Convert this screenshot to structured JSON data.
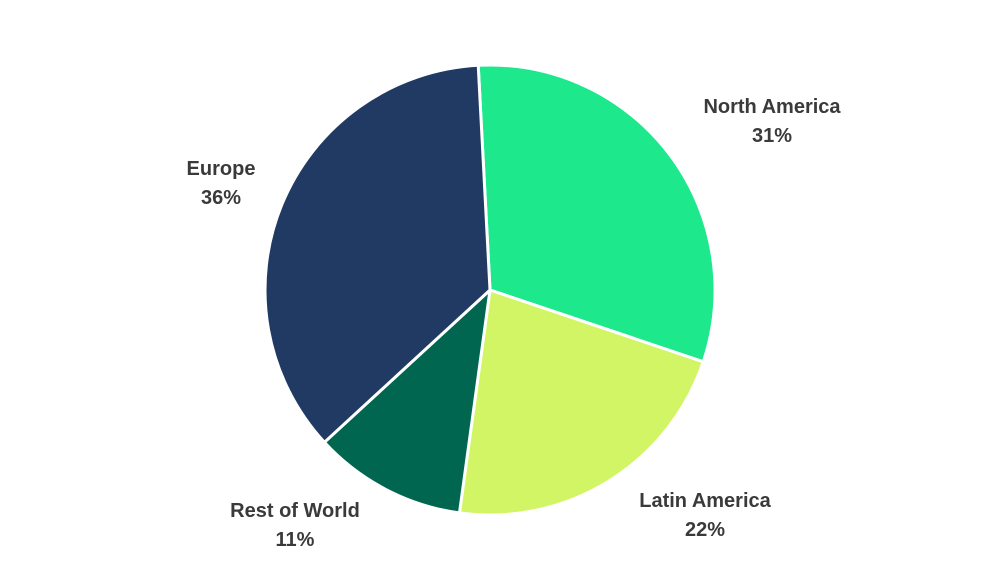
{
  "chart_data": {
    "type": "pie",
    "title": "",
    "start_angle_deg": -3,
    "slices": [
      {
        "name": "North America",
        "value": 31,
        "label": "31%",
        "color": "#1de88c"
      },
      {
        "name": "Latin America",
        "value": 22,
        "label": "22%",
        "color": "#d2f566"
      },
      {
        "name": "Rest of World",
        "value": 11,
        "label": "11%",
        "color": "#016650"
      },
      {
        "name": "Europe",
        "value": 36,
        "label": "36%",
        "color": "#203a63"
      }
    ],
    "slice_border_color": "#ffffff",
    "legend": "none",
    "labels_position": "outside"
  }
}
